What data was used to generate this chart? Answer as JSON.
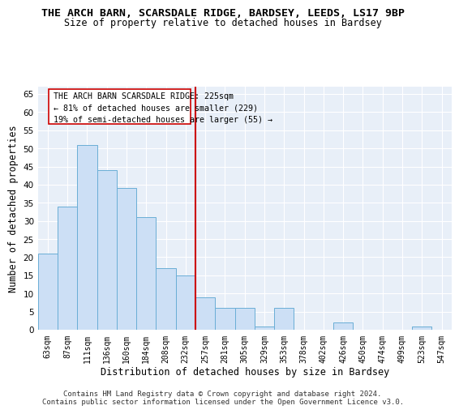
{
  "title1": "THE ARCH BARN, SCARSDALE RIDGE, BARDSEY, LEEDS, LS17 9BP",
  "title2": "Size of property relative to detached houses in Bardsey",
  "xlabel": "Distribution of detached houses by size in Bardsey",
  "ylabel": "Number of detached properties",
  "categories": [
    "63sqm",
    "87sqm",
    "111sqm",
    "136sqm",
    "160sqm",
    "184sqm",
    "208sqm",
    "232sqm",
    "257sqm",
    "281sqm",
    "305sqm",
    "329sqm",
    "353sqm",
    "378sqm",
    "402sqm",
    "426sqm",
    "450sqm",
    "474sqm",
    "499sqm",
    "523sqm",
    "547sqm"
  ],
  "values": [
    21,
    34,
    51,
    44,
    39,
    31,
    17,
    15,
    9,
    6,
    6,
    1,
    6,
    0,
    0,
    2,
    0,
    0,
    0,
    1,
    0
  ],
  "bar_color": "#ccdff5",
  "bar_edge_color": "#6aaed6",
  "vline_x": 7.5,
  "vline_color": "#cc0000",
  "annotation_text": "THE ARCH BARN SCARSDALE RIDGE: 225sqm\n← 81% of detached houses are smaller (229)\n19% of semi-detached houses are larger (55) →",
  "ylim": [
    0,
    67
  ],
  "yticks": [
    0,
    5,
    10,
    15,
    20,
    25,
    30,
    35,
    40,
    45,
    50,
    55,
    60,
    65
  ],
  "footer1": "Contains HM Land Registry data © Crown copyright and database right 2024.",
  "footer2": "Contains public sector information licensed under the Open Government Licence v3.0.",
  "bg_color": "#e8eff8",
  "grid_color": "#d0daea"
}
